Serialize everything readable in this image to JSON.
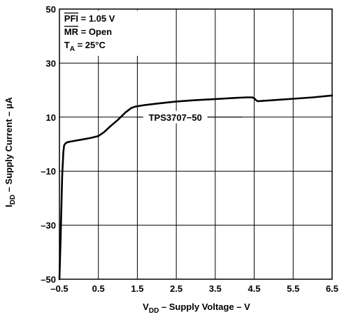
{
  "chart_data": {
    "type": "line",
    "title": "",
    "xlabel": {
      "main": "V",
      "sub": "DD",
      "rest": " – Supply Voltage – V"
    },
    "ylabel": {
      "main": "I",
      "sub": "DD",
      "rest": " – Supply Current – µA"
    },
    "xlim": [
      -0.5,
      6.5
    ],
    "ylim": [
      -50,
      50
    ],
    "x_ticks": [
      -0.5,
      0.5,
      1.5,
      2.5,
      3.5,
      4.5,
      5.5,
      6.5
    ],
    "x_tick_labels": [
      "–0.5",
      "0.5",
      "1.5",
      "2.5",
      "3.5",
      "4.5",
      "5.5",
      "6.5"
    ],
    "y_ticks": [
      -50,
      -30,
      -10,
      10,
      30,
      50
    ],
    "y_tick_labels": [
      "–50",
      "–30",
      "–10",
      "10",
      "30",
      "50"
    ],
    "grid": true,
    "series": [
      {
        "name": "TPS3707−50",
        "x": [
          -0.5,
          -0.47,
          -0.43,
          -0.4,
          -0.38,
          -0.35,
          -0.3,
          -0.2,
          0.0,
          0.3,
          0.5,
          0.65,
          0.8,
          1.0,
          1.2,
          1.35,
          1.45,
          1.7,
          2.0,
          2.5,
          3.0,
          3.5,
          4.0,
          4.3,
          4.45,
          4.5,
          4.55,
          4.6,
          4.7,
          5.0,
          5.5,
          6.0,
          6.5
        ],
        "y": [
          -50,
          -35,
          -12,
          -3,
          -0.5,
          0.2,
          0.7,
          1.0,
          1.5,
          2.3,
          3.0,
          4.5,
          6.5,
          9.0,
          11.8,
          13.4,
          13.9,
          14.5,
          15.0,
          15.8,
          16.3,
          16.7,
          17.1,
          17.3,
          17.3,
          17.0,
          16.2,
          15.9,
          16.0,
          16.3,
          16.8,
          17.3,
          18.0
        ]
      }
    ],
    "annotations": {
      "series_label": "TPS3707−50",
      "conditions": [
        {
          "main": "PFI",
          "overline": true,
          "rest": " = 1.05 V"
        },
        {
          "main": "MR",
          "overline": true,
          "rest": " = Open"
        },
        {
          "main": "T",
          "sub": "A",
          "rest": " = 25°C"
        }
      ]
    }
  }
}
